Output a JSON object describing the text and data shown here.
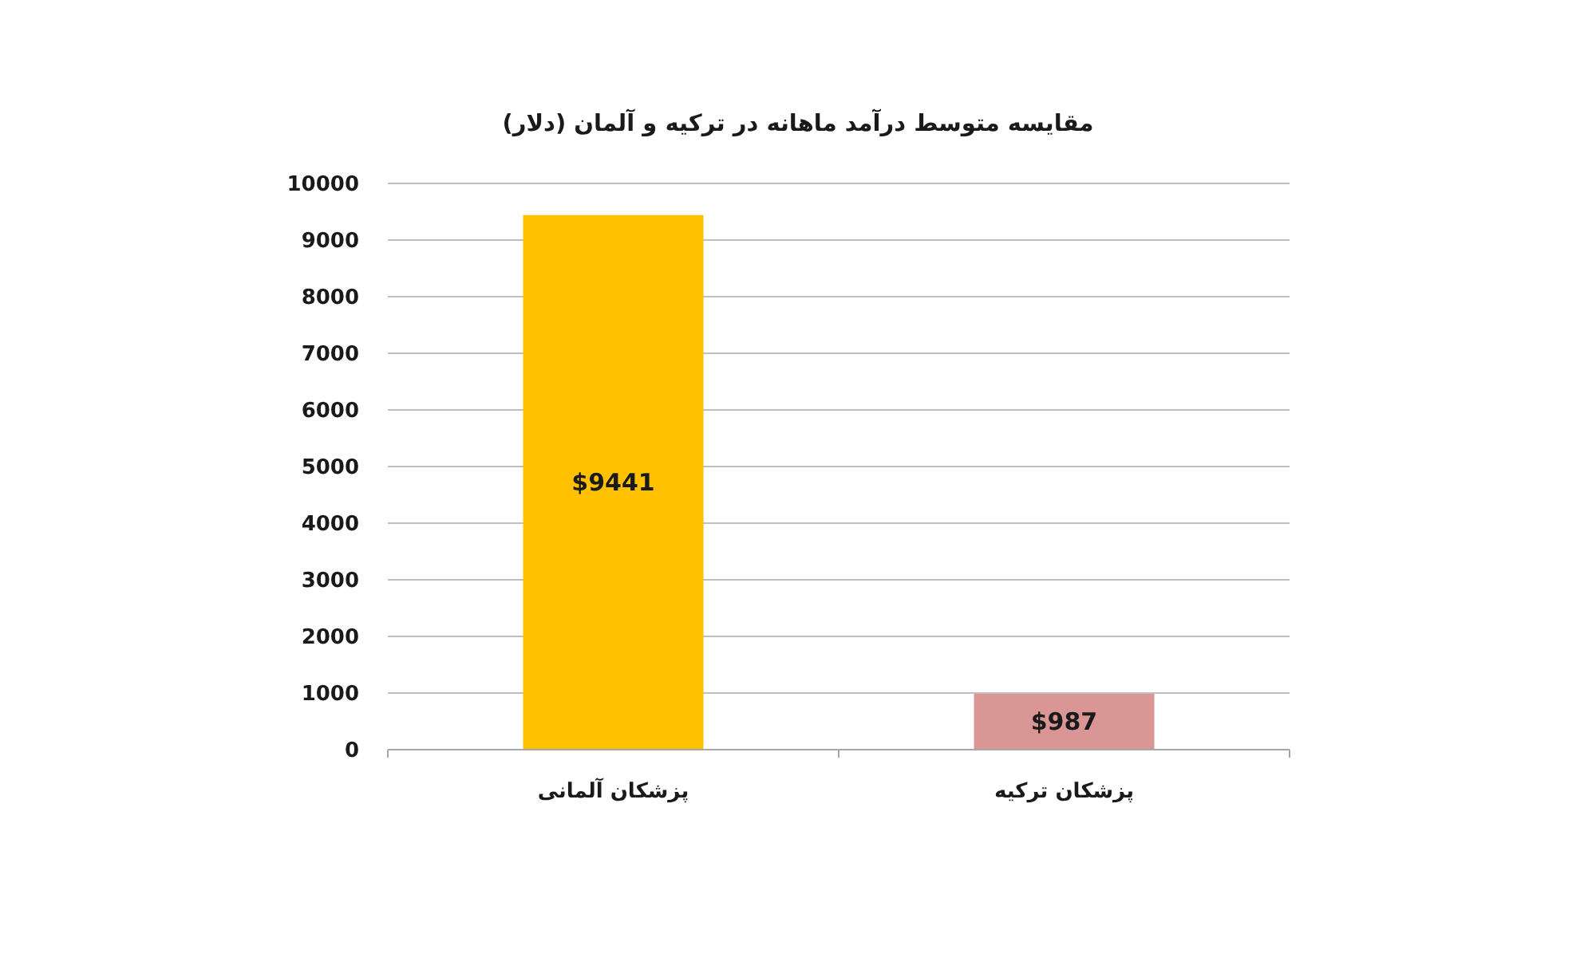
{
  "chart_data": {
    "type": "bar",
    "title": "مقایسه متوسط درآمد ماهانه در ترکیه و آلمان (دلار)",
    "categories": [
      "پزشکان آلمانی",
      "پزشکان ترکیه"
    ],
    "values": [
      9441,
      987
    ],
    "colors": [
      "#ffc000",
      "#d99694"
    ],
    "value_labels": [
      "$9441",
      "$987"
    ],
    "ylim": [
      0,
      10000
    ],
    "yticks": [
      0,
      1000,
      2000,
      3000,
      4000,
      5000,
      6000,
      7000,
      8000,
      9000,
      10000
    ],
    "grid": "y"
  }
}
